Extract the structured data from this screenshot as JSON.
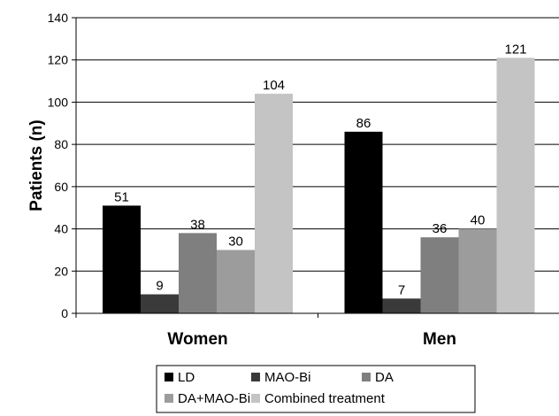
{
  "chart_data": {
    "type": "bar",
    "title": "",
    "xlabel": "",
    "ylabel": "Patients (n)",
    "ylim": [
      0,
      140
    ],
    "yticks": [
      0,
      20,
      40,
      60,
      80,
      100,
      120,
      140
    ],
    "categories": [
      "Women",
      "Men"
    ],
    "series": [
      {
        "name": "LD",
        "values": [
          51,
          86
        ],
        "color": "#000000"
      },
      {
        "name": "MAO-Bi",
        "values": [
          9,
          7
        ],
        "color": "#3a3a3a"
      },
      {
        "name": "DA",
        "values": [
          38,
          36
        ],
        "color": "#7f7f7f"
      },
      {
        "name": "DA+MAO-Bi",
        "values": [
          30,
          40
        ],
        "color": "#9c9c9c"
      },
      {
        "name": "Combined treatment",
        "values": [
          104,
          121
        ],
        "color": "#c4c4c4"
      }
    ],
    "grid": true,
    "legend": "bottom"
  }
}
